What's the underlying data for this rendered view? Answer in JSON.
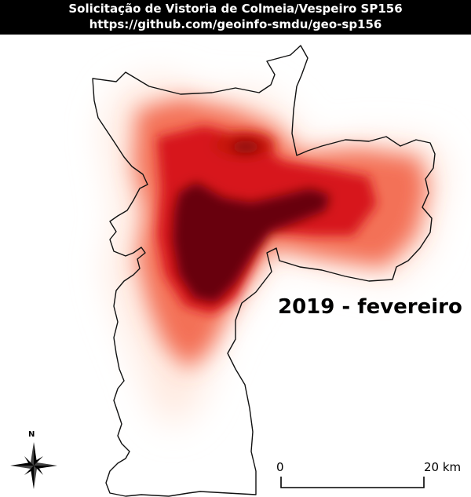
{
  "header": {
    "title": "Solicitação de Vistoria de Colmeia/Vespeiro SP156",
    "url": "https://github.com/geoinfo-smdu/geo-sp156"
  },
  "map": {
    "period_label": "2019 - fevereiro",
    "heat_colors": [
      "#ffe8dd",
      "#f26a4f",
      "#d7191c",
      "#67000d"
    ]
  },
  "scale_bar": {
    "start_label": "0",
    "end_label": "20 km"
  },
  "north_arrow": {
    "label": "N"
  }
}
